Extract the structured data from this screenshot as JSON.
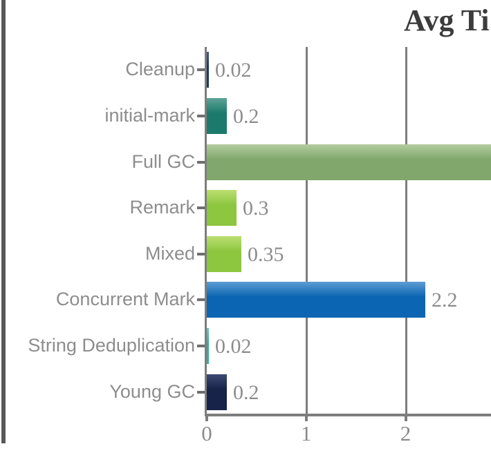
{
  "title": "Avg Ti",
  "title_clipped_right": true,
  "colors": {
    "panel_border": "#595959",
    "axis": "#7d7d7d",
    "category_label": "#8d8d8d",
    "value_label": "#8c8c8c",
    "axis_tick_label": "#8a8a8a",
    "title": "#3c3c3c",
    "background": "#ffffff"
  },
  "chart_data": {
    "type": "bar",
    "orientation": "horizontal",
    "title": "Avg Ti",
    "xlabel": "",
    "ylabel": "",
    "grid": "vertical gridlines at x ticks",
    "legend": "none",
    "x_ticks": [
      {
        "value": 0,
        "label": "0"
      },
      {
        "value": 1,
        "label": "1"
      },
      {
        "value": 2,
        "label": "2"
      }
    ],
    "xlim_visible": [
      0,
      2.86
    ],
    "categories": [
      "Cleanup",
      "initial-mark",
      "Full GC",
      "Remark",
      "Mixed",
      "Concurrent Mark",
      "String Deduplication",
      "Young GC"
    ],
    "bars": [
      {
        "category": "Cleanup",
        "value": 0.02,
        "value_label": "0.02",
        "color": "#1f3864",
        "top_color": "#46598a",
        "clipped_right": false
      },
      {
        "category": "initial-mark",
        "value": 0.2,
        "value_label": "0.2",
        "color": "#1b7a6b",
        "top_color": "#5fa398",
        "clipped_right": false
      },
      {
        "category": "Full GC",
        "value": null,
        "value_label": "",
        "color": "#81a76c",
        "top_color": "#b3cda0",
        "clipped_right": true
      },
      {
        "category": "Remark",
        "value": 0.3,
        "value_label": "0.3",
        "color": "#8dc63f",
        "top_color": "#bcdf72",
        "clipped_right": false
      },
      {
        "category": "Mixed",
        "value": 0.35,
        "value_label": "0.35",
        "color": "#8dc63f",
        "top_color": "#bcdf72",
        "clipped_right": false
      },
      {
        "category": "Concurrent Mark",
        "value": 2.2,
        "value_label": "2.2",
        "color": "#0b65b2",
        "top_color": "#5e9cd3",
        "clipped_right": false
      },
      {
        "category": "String Deduplication",
        "value": 0.02,
        "value_label": "0.02",
        "color": "#35aca0",
        "top_color": "#6cc4ba",
        "clipped_right": false
      },
      {
        "category": "Young GC",
        "value": 0.2,
        "value_label": "0.2",
        "color": "#172349",
        "top_color": "#3d4a72",
        "clipped_right": false
      }
    ]
  }
}
